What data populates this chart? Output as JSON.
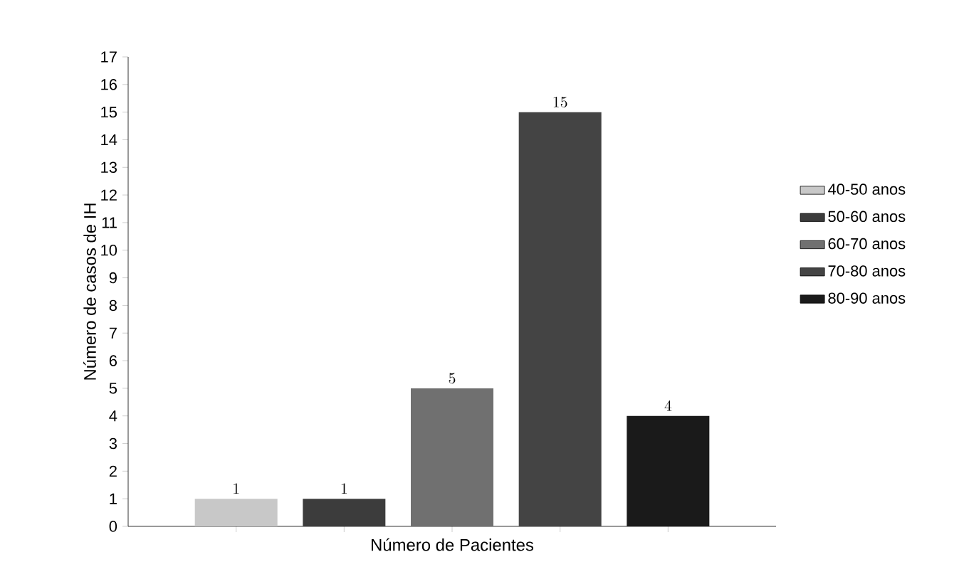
{
  "chart_data": {
    "type": "bar",
    "xlabel": "Número de Pacientes",
    "ylabel": "Número de casos de IH",
    "categories": [
      null,
      null,
      null,
      null,
      null
    ],
    "series": [
      {
        "name": "40-50 anos",
        "color": "#c8c8c8",
        "values": [
          1,
          null,
          null,
          null,
          null
        ]
      },
      {
        "name": "50-60 anos",
        "color": "#3c3c3c",
        "values": [
          null,
          1,
          null,
          null,
          null
        ]
      },
      {
        "name": "60-70 anos",
        "color": "#707070",
        "values": [
          null,
          null,
          5,
          null,
          null
        ]
      },
      {
        "name": "70-80 anos",
        "color": "#444444",
        "values": [
          null,
          null,
          null,
          15,
          null
        ]
      },
      {
        "name": "80-90 anos",
        "color": "#1a1a1a",
        "values": [
          null,
          null,
          null,
          null,
          4
        ]
      }
    ],
    "ylim": [
      0,
      17
    ],
    "yticks": [
      0,
      1,
      2,
      3,
      4,
      5,
      6,
      7,
      8,
      9,
      10,
      11,
      12,
      13,
      14,
      15,
      16,
      17
    ],
    "data_labels": true,
    "legend": "right",
    "grid": false
  }
}
